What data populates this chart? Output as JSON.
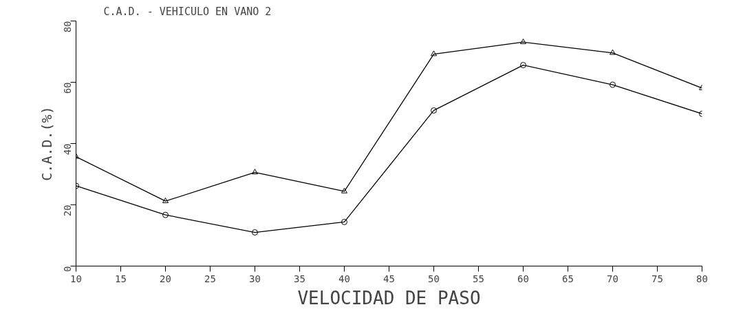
{
  "chart_data": {
    "type": "line",
    "title": "C.A.D. -  VEHICULO EN VANO 2",
    "xlabel": "VELOCIDAD DE PASO",
    "ylabel": "C.A.D.(%)",
    "x": [
      10,
      20,
      30,
      40,
      50,
      60,
      70,
      80
    ],
    "series": [
      {
        "color": "#000000",
        "marker": "triangle",
        "values": [
          35.7,
          21.2,
          30.6,
          24.4,
          69.2,
          73.1,
          69.6,
          58.1
        ]
      },
      {
        "color": "#000000",
        "marker": "circle",
        "values": [
          26.2,
          16.7,
          11,
          14.4,
          50.8,
          65.6,
          59.2,
          49.7
        ]
      }
    ],
    "xlim": [
      10,
      80
    ],
    "xticks": [
      10,
      15,
      20,
      25,
      30,
      35,
      40,
      45,
      50,
      55,
      60,
      65,
      70,
      75,
      80
    ],
    "ylim": [
      0,
      80
    ],
    "yticks": [
      0,
      20,
      40,
      60,
      80
    ],
    "grid": false,
    "line_style": "solid"
  }
}
